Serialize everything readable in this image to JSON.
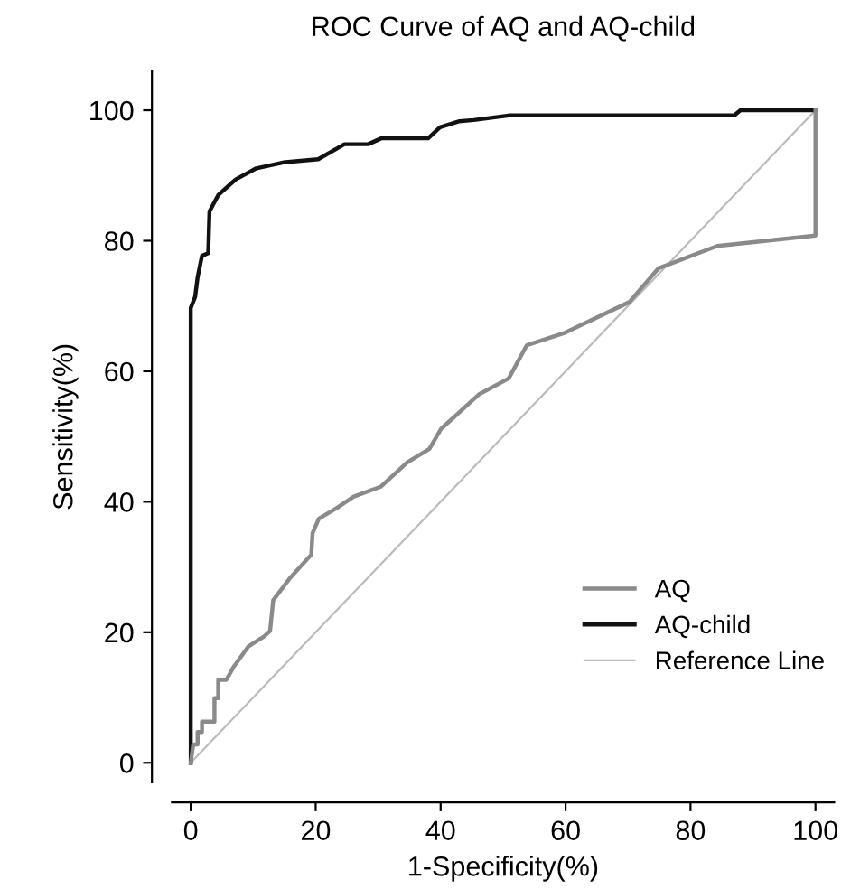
{
  "chart_data": {
    "type": "line",
    "title": "ROC Curve of AQ and AQ-child",
    "xlabel": "1-Specificity(%)",
    "ylabel": "Sensitivity(%)",
    "xlim": [
      -3,
      103
    ],
    "ylim": [
      -3,
      106
    ],
    "xticks": [
      0,
      20,
      40,
      60,
      80,
      100
    ],
    "yticks": [
      0,
      20,
      40,
      60,
      80,
      100
    ],
    "grid": false,
    "legend": "bottom right",
    "marker": "none",
    "series": [
      {
        "name": "AQ",
        "color": "#8a8a8a",
        "x": [
          0,
          0.4,
          1.1,
          1.1,
          1.8,
          1.8,
          3.8,
          3.8,
          4.4,
          4.4,
          5.7,
          6.8,
          9.2,
          11.8,
          12.7,
          13.2,
          15.8,
          19.3,
          19.5,
          20.5,
          23.3,
          26.1,
          30.4,
          34.6,
          38.2,
          40.1,
          46.2,
          50.9,
          53.8,
          59.9,
          70.2,
          74.9,
          84.3,
          100,
          100
        ],
        "values": [
          0,
          2.8,
          2.8,
          4.7,
          4.7,
          6.3,
          6.3,
          9.9,
          9.9,
          12.7,
          12.7,
          14.6,
          17.8,
          19.4,
          20.2,
          24.9,
          28.2,
          31.9,
          35.2,
          37.4,
          39,
          40.8,
          42.3,
          46,
          48.1,
          51.2,
          56.5,
          58.9,
          64,
          65.9,
          70.6,
          75.8,
          79.2,
          80.8,
          100
        ]
      },
      {
        "name": "AQ-child",
        "color": "#111111",
        "x": [
          0,
          0,
          0.7,
          1.1,
          1.8,
          2.8,
          3,
          4.4,
          7.2,
          10.5,
          14.8,
          20.4,
          24.6,
          28.4,
          30.5,
          38,
          39.9,
          42.9,
          45.3,
          50.9,
          87,
          88,
          100
        ],
        "values": [
          0,
          69.7,
          71.4,
          74.4,
          77.7,
          78.1,
          84.5,
          87,
          89.4,
          91.1,
          92,
          92.5,
          94.8,
          94.8,
          95.7,
          95.7,
          97.4,
          98.3,
          98.5,
          99.2,
          99.2,
          100,
          100
        ]
      },
      {
        "name": "Reference Line",
        "color": "#bbbbbb",
        "line_style": "solid",
        "x": [
          0,
          100
        ],
        "values": [
          0,
          100
        ]
      }
    ]
  }
}
